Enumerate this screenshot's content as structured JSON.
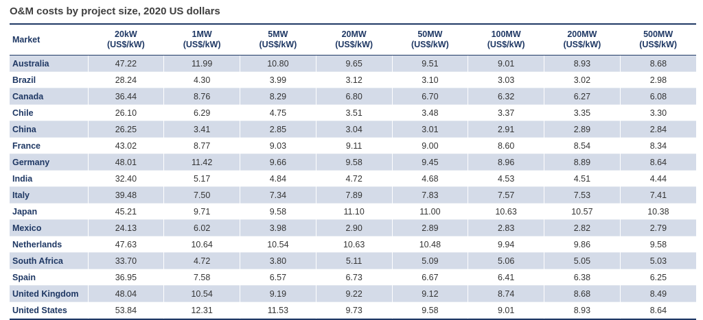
{
  "title": "O&M costs by project size, 2020 US dollars",
  "table": {
    "market_header": "Market",
    "columns": [
      {
        "size": "20kW",
        "unit": "(US$/kW)"
      },
      {
        "size": "1MW",
        "unit": "(US$/kW)"
      },
      {
        "size": "5MW",
        "unit": "(US$/kW)"
      },
      {
        "size": "20MW",
        "unit": "(US$/kW)"
      },
      {
        "size": "50MW",
        "unit": "(US$/kW)"
      },
      {
        "size": "100MW",
        "unit": "(US$/kW)"
      },
      {
        "size": "200MW",
        "unit": "(US$/kW)"
      },
      {
        "size": "500MW",
        "unit": "(US$/kW)"
      }
    ],
    "rows": [
      {
        "market": "Australia",
        "values": [
          "47.22",
          "11.99",
          "10.80",
          "9.65",
          "9.51",
          "9.01",
          "8.93",
          "8.68"
        ]
      },
      {
        "market": "Brazil",
        "values": [
          "28.24",
          "4.30",
          "3.99",
          "3.12",
          "3.10",
          "3.03",
          "3.02",
          "2.98"
        ]
      },
      {
        "market": "Canada",
        "values": [
          "36.44",
          "8.76",
          "8.29",
          "6.80",
          "6.70",
          "6.32",
          "6.27",
          "6.08"
        ]
      },
      {
        "market": "Chile",
        "values": [
          "26.10",
          "6.29",
          "4.75",
          "3.51",
          "3.48",
          "3.37",
          "3.35",
          "3.30"
        ]
      },
      {
        "market": "China",
        "values": [
          "26.25",
          "3.41",
          "2.85",
          "3.04",
          "3.01",
          "2.91",
          "2.89",
          "2.84"
        ]
      },
      {
        "market": "France",
        "values": [
          "43.02",
          "8.77",
          "9.03",
          "9.11",
          "9.00",
          "8.60",
          "8.54",
          "8.34"
        ]
      },
      {
        "market": "Germany",
        "values": [
          "48.01",
          "11.42",
          "9.66",
          "9.58",
          "9.45",
          "8.96",
          "8.89",
          "8.64"
        ]
      },
      {
        "market": "India",
        "values": [
          "32.40",
          "5.17",
          "4.84",
          "4.72",
          "4.68",
          "4.53",
          "4.51",
          "4.44"
        ]
      },
      {
        "market": "Italy",
        "values": [
          "39.48",
          "7.50",
          "7.34",
          "7.89",
          "7.83",
          "7.57",
          "7.53",
          "7.41"
        ]
      },
      {
        "market": "Japan",
        "values": [
          "45.21",
          "9.71",
          "9.58",
          "11.10",
          "11.00",
          "10.63",
          "10.57",
          "10.38"
        ]
      },
      {
        "market": "Mexico",
        "values": [
          "24.13",
          "6.02",
          "3.98",
          "2.90",
          "2.89",
          "2.83",
          "2.82",
          "2.79"
        ]
      },
      {
        "market": "Netherlands",
        "values": [
          "47.63",
          "10.64",
          "10.54",
          "10.63",
          "10.48",
          "9.94",
          "9.86",
          "9.58"
        ]
      },
      {
        "market": "South Africa",
        "values": [
          "33.70",
          "4.72",
          "3.80",
          "5.11",
          "5.09",
          "5.06",
          "5.05",
          "5.03"
        ]
      },
      {
        "market": "Spain",
        "values": [
          "36.95",
          "7.58",
          "6.57",
          "6.73",
          "6.67",
          "6.41",
          "6.38",
          "6.25"
        ]
      },
      {
        "market": "United Kingdom",
        "values": [
          "48.04",
          "10.54",
          "9.19",
          "9.22",
          "9.12",
          "8.74",
          "8.68",
          "8.49"
        ]
      },
      {
        "market": "United States",
        "values": [
          "53.84",
          "12.31",
          "11.53",
          "9.73",
          "9.58",
          "9.01",
          "8.93",
          "8.64"
        ]
      }
    ]
  },
  "colors": {
    "header_text": "#1f3864",
    "stripe": "#d4dbe8",
    "rule": "#1f3864"
  }
}
